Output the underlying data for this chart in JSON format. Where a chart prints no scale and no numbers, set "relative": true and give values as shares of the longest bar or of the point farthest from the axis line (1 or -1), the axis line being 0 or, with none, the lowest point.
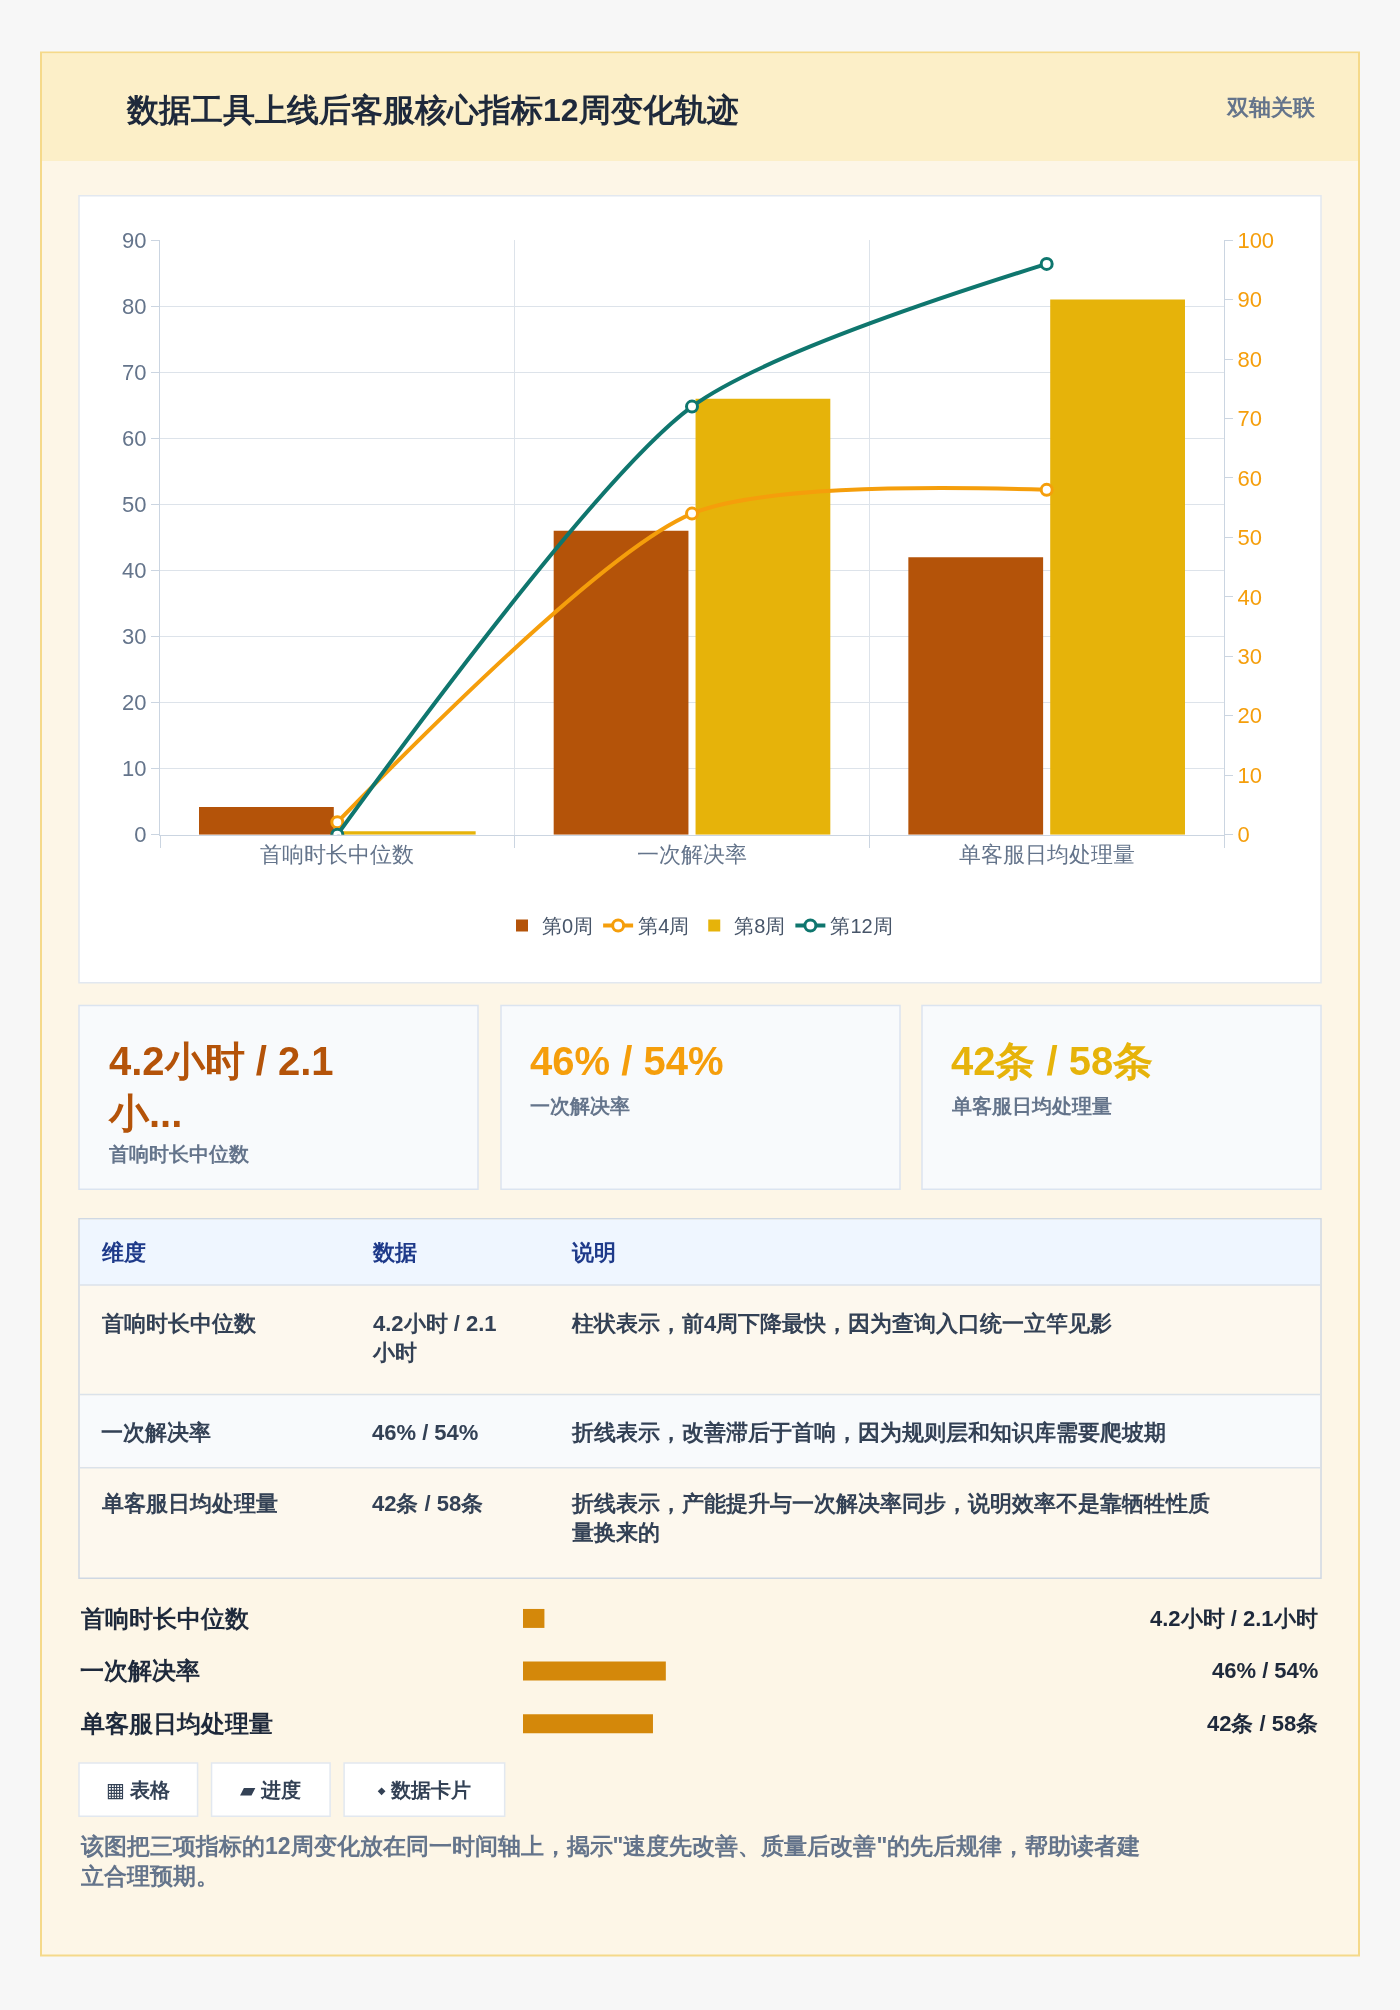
{
  "chart_data": [
    {
      "type": "bar",
      "title": "数据工具上线后客服核心指标12周变化轨迹",
      "annotations": [
        "双轴关联"
      ],
      "categories": [
        "首响时长中位数",
        "一次解决率",
        "单客服日均处理量"
      ],
      "series": [
        {
          "name": "第0周",
          "color": "#b45309",
          "values": [
            4.2,
            46,
            42
          ]
        },
        {
          "name": "第4周",
          "color": "#f59e0b",
          "values": [
            2.1,
            54,
            58
          ],
          "type": "line",
          "axis": "y2"
        },
        {
          "name": "第8周",
          "color": "#e6b30a",
          "values": [
            0.5,
            66,
            81
          ]
        },
        {
          "name": "第12周",
          "color": "#0f766e",
          "values": [
            0,
            72,
            96
          ],
          "type": "line",
          "axis": "y2"
        }
      ],
      "ylim": [
        0,
        90
      ],
      "yticks": [
        0,
        10,
        20,
        30,
        40,
        50,
        60,
        70,
        80,
        90
      ],
      "y2lim": [
        0,
        100
      ],
      "y2ticks": [
        0,
        10,
        20,
        30,
        40,
        50,
        60,
        70,
        80,
        90,
        100
      ],
      "grid": true,
      "legend": "bottom",
      "marker": "circle"
    },
    {
      "type": "other",
      "annotations": [
        "4.2小时 / 2.1小...",
        "首响时长中位数",
        "46% / 54%",
        "一次解决率",
        "42条 / 58条",
        "单客服日均处理量"
      ],
      "colors": [
        "#b45309",
        "#f59e0b",
        "#e6b30a"
      ]
    },
    {
      "type": "other",
      "annotations": [
        "维度",
        "数据",
        "说明",
        "首响时长中位数",
        "4.2小时 / 2.1小时",
        "柱状表示，前4周下降最快，因为查询入口统一立竿见影",
        "一次解决率",
        "46% / 54%",
        "折线表示，改善滞后于首响，因为规则层和知识库需要爬坡期",
        "单客服日均处理量",
        "42条 / 58条",
        "折线表示，产能提升与一次解决率同步，说明效率不是靠牺牲性质量换来的"
      ]
    },
    {
      "type": "bar",
      "orientation": "horizontal",
      "relative": true,
      "categories": [
        "首响时长中位数",
        "一次解决率",
        "单客服日均处理量"
      ],
      "values": [
        0.15,
        1,
        0.91
      ],
      "color": "#d4880a",
      "annotations": [
        "4.2小时 / 2.1小时",
        "46% / 54%",
        "42条 / 58条"
      ]
    },
    {
      "type": "other",
      "annotations": [
        "▦ 表格",
        "▰ 进度",
        "⬩ 数据卡片",
        "该图把三项指标的12周变化放在同一时间轴上，揭示\"速度先改善、质量后改善\"的先后规律，帮助读者建立合理预期。"
      ]
    }
  ]
}
